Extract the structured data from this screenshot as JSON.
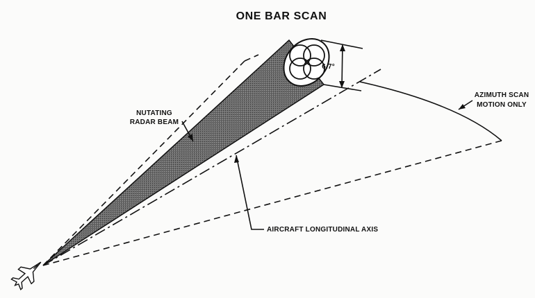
{
  "title": "ONE BAR SCAN",
  "labels": {
    "nutating_line1": "NUTATING",
    "nutating_line2": "RADAR BEAM",
    "azimuth_line1": "AZIMUTH SCAN",
    "azimuth_line2": "MOTION ONLY",
    "axis": "AIRCRAFT LONGITUDINAL AXIS",
    "angle": "6.7°"
  }
}
